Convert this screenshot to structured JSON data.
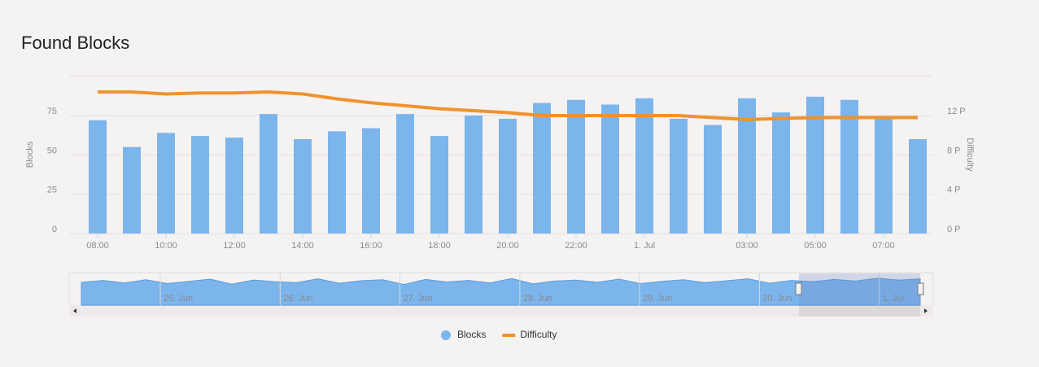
{
  "chart_data": {
    "type": "bar-line",
    "title": "Found Blocks",
    "categories": [
      "08:00",
      null,
      "10:00",
      null,
      "12:00",
      null,
      "14:00",
      null,
      "16:00",
      null,
      "18:00",
      null,
      "20:00",
      null,
      "22:00",
      null,
      "1. Jul",
      null,
      null,
      "03:00",
      null,
      "05:00",
      null,
      "07:00",
      null
    ],
    "series": [
      {
        "name": "Blocks",
        "type": "bar",
        "color": "#7cb5ec",
        "values": [
          72,
          55,
          64,
          62,
          61,
          76,
          60,
          65,
          67,
          76,
          62,
          75,
          73,
          83,
          85,
          82,
          86,
          73,
          69,
          86,
          77,
          87,
          85,
          73,
          60
        ]
      },
      {
        "name": "Difficulty",
        "type": "line",
        "axis": "y2",
        "color": "#f0922d",
        "values": [
          14.4,
          14.4,
          14.2,
          14.3,
          14.3,
          14.4,
          14.2,
          13.7,
          13.3,
          13.0,
          12.7,
          12.5,
          12.3,
          12.0,
          12.0,
          12.0,
          12.0,
          12.0,
          11.8,
          11.6,
          11.7,
          11.8,
          11.8,
          11.8,
          11.8
        ]
      }
    ],
    "y_label": "Blocks",
    "y2_label": "Difficulty",
    "ylim": [
      0,
      100
    ],
    "yticks": [
      0,
      25,
      50,
      75
    ],
    "y2lim": [
      0,
      16
    ],
    "y2ticks": [
      {
        "value": 0,
        "label": "0 P"
      },
      {
        "value": 4,
        "label": "4 P"
      },
      {
        "value": 8,
        "label": "8 P"
      },
      {
        "value": 12,
        "label": "12 P"
      }
    ],
    "grid": true,
    "legend": "bottom",
    "navigator": {
      "labels": [
        "25. Jun",
        "26. Jun",
        "27. Jun",
        "28. Jun",
        "29. Jun",
        "30. Jun",
        "1. Jul"
      ],
      "ylim": [
        0,
        100
      ],
      "values": [
        72,
        78,
        70,
        80,
        68,
        75,
        82,
        66,
        79,
        74,
        71,
        83,
        69,
        77,
        80,
        65,
        81,
        73,
        78,
        70,
        84,
        67,
        76,
        79,
        72,
        82,
        68,
        75,
        80,
        71,
        77,
        83,
        69,
        78,
        74,
        81,
        76,
        85,
        79,
        83
      ]
    }
  }
}
